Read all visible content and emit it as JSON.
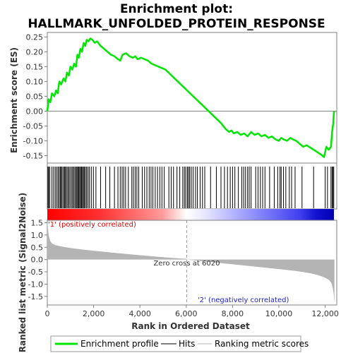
{
  "chart_data": {
    "type": "line",
    "title_line1": "Enrichment plot:",
    "title_line2": "HALLMARK_UNFOLDED_PROTEIN_RESPONSE",
    "xlabel": "Rank in Ordered Dataset",
    "es_ylabel": "Enrichment score (ES)",
    "metric_ylabel": "Ranked list metric (Signal2Noise)",
    "xlim": [
      0,
      12500
    ],
    "x_ticks": [
      0,
      2000,
      4000,
      6000,
      8000,
      10000,
      12000
    ],
    "x_tick_labels": [
      "0",
      "2,000",
      "4,000",
      "6,000",
      "8,000",
      "10,000",
      "12,000"
    ],
    "es_ylim": [
      -0.175,
      0.265
    ],
    "es_ticks": [
      0.25,
      0.2,
      0.15,
      0.1,
      0.05,
      0.0,
      -0.05,
      -0.1,
      -0.15
    ],
    "es_tick_labels": [
      "0.25",
      "0.20",
      "0.15",
      "0.10",
      "0.05",
      "0.00",
      "-0.05",
      "-0.10",
      "-0.15"
    ],
    "metric_ylim": [
      -1.85,
      1.6
    ],
    "metric_ticks": [
      1.5,
      1.0,
      0.5,
      0.0,
      -0.5,
      -1.0,
      -1.5
    ],
    "metric_tick_labels": [
      "1.5",
      "1.0",
      "0.5",
      "0.0",
      "-0.5",
      "-1.0",
      "-1.5"
    ],
    "zero_cross_rank": 6020,
    "zero_cross_label": "Zero cross at 6020",
    "pos_label": "'1' (positively correlated)",
    "neg_label": "'2' (negatively correlated)",
    "total_genes": 12400,
    "es_profile": {
      "x": [
        0,
        60,
        130,
        200,
        300,
        380,
        450,
        520,
        600,
        700,
        780,
        850,
        930,
        1000,
        1080,
        1160,
        1240,
        1300,
        1360,
        1430,
        1500,
        1570,
        1640,
        1700,
        1780,
        1860,
        1950,
        2050,
        2150,
        2300,
        2450,
        2600,
        2750,
        2900,
        3050,
        3150,
        3250,
        3400,
        3550,
        3700,
        3800,
        3900,
        4050,
        4200,
        4350,
        4500,
        4650,
        4800,
        4950,
        5100,
        5300,
        5500,
        5700,
        5900,
        6100,
        6300,
        6500,
        6700,
        6900,
        7100,
        7300,
        7500,
        7700,
        7850,
        7950,
        8050,
        8200,
        8350,
        8500,
        8650,
        8800,
        8950,
        9100,
        9250,
        9400,
        9550,
        9700,
        9850,
        10000,
        10100,
        10200,
        10350,
        10500,
        10600,
        10750,
        10900,
        11050,
        11200,
        11400,
        11600,
        11800,
        11950,
        12050,
        12150,
        12250,
        12300,
        12350,
        12380
      ],
      "y": [
        0.0,
        0.04,
        0.03,
        0.06,
        0.05,
        0.07,
        0.06,
        0.1,
        0.09,
        0.11,
        0.1,
        0.13,
        0.12,
        0.15,
        0.14,
        0.16,
        0.15,
        0.19,
        0.18,
        0.21,
        0.2,
        0.23,
        0.22,
        0.24,
        0.235,
        0.245,
        0.24,
        0.23,
        0.235,
        0.22,
        0.21,
        0.2,
        0.19,
        0.185,
        0.175,
        0.17,
        0.19,
        0.195,
        0.185,
        0.18,
        0.185,
        0.175,
        0.18,
        0.175,
        0.17,
        0.16,
        0.155,
        0.15,
        0.145,
        0.14,
        0.125,
        0.11,
        0.095,
        0.08,
        0.065,
        0.05,
        0.035,
        0.02,
        0.005,
        -0.01,
        -0.025,
        -0.04,
        -0.06,
        -0.07,
        -0.065,
        -0.075,
        -0.07,
        -0.08,
        -0.075,
        -0.085,
        -0.07,
        -0.08,
        -0.075,
        -0.085,
        -0.08,
        -0.09,
        -0.085,
        -0.095,
        -0.1,
        -0.09,
        -0.095,
        -0.1,
        -0.09,
        -0.095,
        -0.1,
        -0.11,
        -0.12,
        -0.115,
        -0.125,
        -0.135,
        -0.145,
        -0.155,
        -0.12,
        -0.13,
        -0.12,
        -0.07,
        -0.04,
        0.0
      ]
    },
    "hits": [
      30,
      60,
      110,
      200,
      270,
      340,
      400,
      460,
      510,
      560,
      600,
      640,
      700,
      740,
      780,
      830,
      880,
      930,
      980,
      1040,
      1090,
      1140,
      1190,
      1240,
      1280,
      1320,
      1360,
      1400,
      1440,
      1480,
      1520,
      1560,
      1600,
      1650,
      1700,
      1760,
      1820,
      1900,
      1990,
      2100,
      2300,
      2520,
      2700,
      2900,
      3050,
      3150,
      3230,
      3300,
      3380,
      3500,
      3650,
      3720,
      3800,
      3870,
      3950,
      4100,
      4200,
      4300,
      4400,
      4480,
      4560,
      4660,
      4760,
      4860,
      4950,
      5050,
      5250,
      5350,
      5450,
      5600,
      5720,
      5850,
      5920,
      5980,
      6050,
      6100,
      6150,
      6220,
      6300,
      6400,
      6480,
      6600,
      6700,
      6800,
      7050,
      7300,
      7500,
      7650,
      7780,
      7900,
      8000,
      8100,
      8250,
      8400,
      8480,
      8560,
      8650,
      8720,
      8800,
      9000,
      9100,
      9200,
      9300,
      9400,
      9600,
      9800,
      9950,
      10050,
      10100,
      10200,
      10300,
      10450,
      10550,
      10700,
      11000,
      11500,
      12000,
      12100,
      12250,
      12300,
      12340,
      12370
    ],
    "colors": {
      "es_line": "#00e600",
      "hit": "#000000",
      "metric_fill": "#b4b4b4",
      "pos_text": "#e00000",
      "neg_text": "#2020d0",
      "zero_line": "#999999",
      "axis": "#808080"
    },
    "legend": {
      "position": "bottom",
      "entries": [
        "Enrichment profile",
        "Hits",
        "Ranking metric scores"
      ]
    }
  }
}
